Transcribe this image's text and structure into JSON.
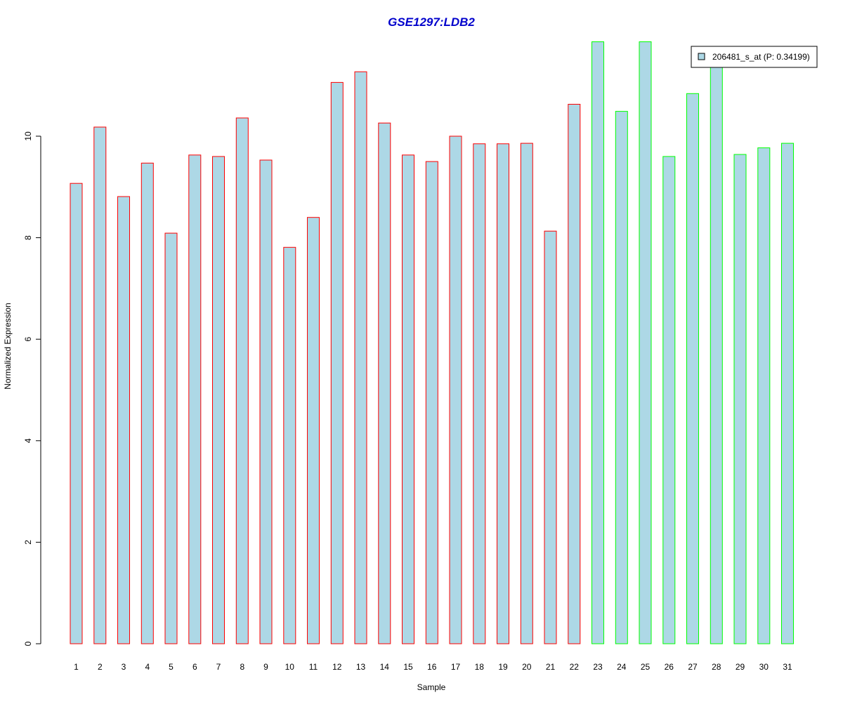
{
  "chart_data": {
    "type": "bar",
    "title": "GSE1297:LDB2",
    "title_color": "#0000CC",
    "xlabel": "Sample",
    "ylabel": "Normalized Expression",
    "ylim": [
      0,
      12
    ],
    "y_ticks": [
      0,
      2,
      4,
      6,
      8,
      10
    ],
    "grid": false,
    "legend": {
      "position": "top-right",
      "entries": [
        "206481_s_at (P: 0.34199)"
      ]
    },
    "categories": [
      "1",
      "2",
      "3",
      "4",
      "5",
      "6",
      "7",
      "8",
      "9",
      "10",
      "11",
      "12",
      "13",
      "14",
      "15",
      "16",
      "17",
      "18",
      "19",
      "20",
      "21",
      "22",
      "23",
      "24",
      "25",
      "26",
      "27",
      "28",
      "29",
      "30",
      "31"
    ],
    "series": [
      {
        "name": "206481_s_at (P: 0.34199)",
        "fill_color": "#ADD8E6",
        "values": [
          9.07,
          10.18,
          8.81,
          9.47,
          8.09,
          9.63,
          9.6,
          10.36,
          9.53,
          7.81,
          8.4,
          11.06,
          11.27,
          10.26,
          9.63,
          9.5,
          10.0,
          9.85,
          9.85,
          9.86,
          8.13,
          10.63,
          11.86,
          10.49,
          11.86,
          9.6,
          10.84,
          11.42,
          9.64,
          9.77,
          9.86
        ],
        "border_colors": [
          "#FF0000",
          "#FF0000",
          "#FF0000",
          "#FF0000",
          "#FF0000",
          "#FF0000",
          "#FF0000",
          "#FF0000",
          "#FF0000",
          "#FF0000",
          "#FF0000",
          "#FF0000",
          "#FF0000",
          "#FF0000",
          "#FF0000",
          "#FF0000",
          "#FF0000",
          "#FF0000",
          "#FF0000",
          "#FF0000",
          "#FF0000",
          "#FF0000",
          "#00FF00",
          "#00FF00",
          "#00FF00",
          "#00FF00",
          "#00FF00",
          "#00FF00",
          "#00FF00",
          "#00FF00",
          "#00FF00"
        ]
      }
    ]
  }
}
